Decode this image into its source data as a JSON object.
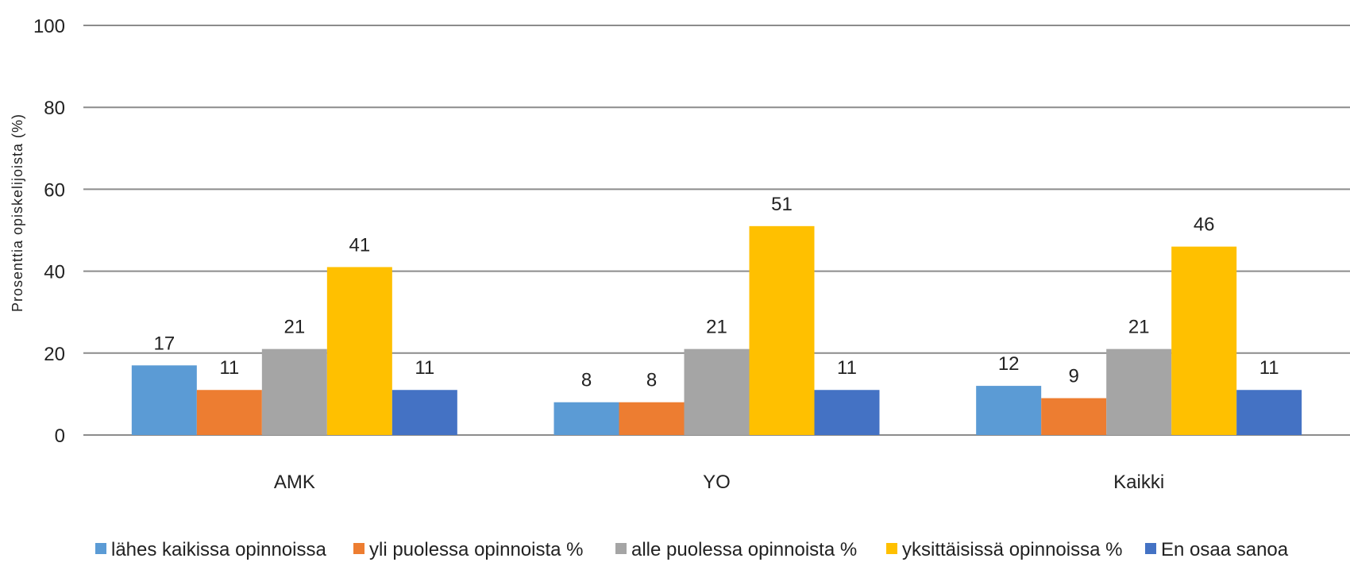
{
  "chart_data": {
    "type": "bar",
    "title": "",
    "xlabel": "",
    "ylabel": "Prosenttia opiskelijoista (%)",
    "ylim": [
      0,
      100
    ],
    "yticks": [
      0,
      20,
      40,
      60,
      80,
      100
    ],
    "grid": true,
    "legend_position": "bottom",
    "categories": [
      "AMK",
      "YO",
      "Kaikki"
    ],
    "series": [
      {
        "name": "lähes kaikissa opinnoissa",
        "color": "#5b9bd5",
        "values": [
          17,
          8,
          12
        ]
      },
      {
        "name": "yli puolessa opinnoista %",
        "color": "#ed7d31",
        "values": [
          11,
          8,
          9
        ]
      },
      {
        "name": "alle puolessa opinnoista %",
        "color": "#a5a5a5",
        "values": [
          21,
          21,
          21
        ]
      },
      {
        "name": "yksittäisissä opinnoissa %",
        "color": "#ffc000",
        "values": [
          41,
          51,
          46
        ]
      },
      {
        "name": "En osaa sanoa",
        "color": "#4472c4",
        "values": [
          11,
          11,
          11
        ]
      }
    ]
  }
}
